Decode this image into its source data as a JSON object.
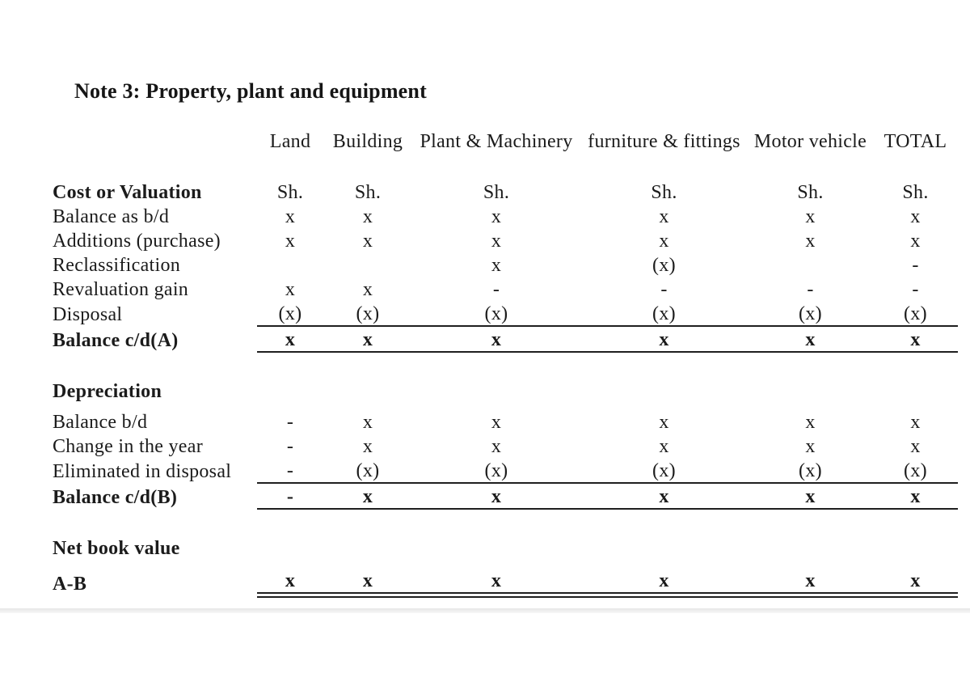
{
  "title": "Note 3: Property, plant and equipment",
  "table": {
    "columns": [
      "",
      "Land",
      "Building",
      "Plant & Machinery",
      "furniture & fittings",
      "Motor vehicle",
      "TOTAL"
    ],
    "rows": [
      {
        "label": "Cost or Valuation",
        "label_bold": true,
        "values": [
          "Sh.",
          "Sh.",
          "Sh.",
          "Sh.",
          "Sh.",
          "Sh."
        ]
      },
      {
        "label": "Balance as b/d",
        "values": [
          "x",
          "x",
          "x",
          "x",
          "x",
          "x"
        ]
      },
      {
        "label": "Additions (purchase)",
        "values": [
          "x",
          "x",
          "x",
          "x",
          "x",
          "x"
        ]
      },
      {
        "label": "Reclassification",
        "values": [
          "",
          "",
          "x",
          "(x)",
          "",
          "-"
        ]
      },
      {
        "label": "Revaluation gain",
        "values": [
          "x",
          "x",
          "-",
          "-",
          "-",
          "-"
        ]
      },
      {
        "label": "Disposal",
        "values": [
          "(x)",
          "(x)",
          "(x)",
          "(x)",
          "(x)",
          "(x)"
        ],
        "rule_below": true
      },
      {
        "label": "Balance c/d(A)",
        "label_bold": true,
        "values_bold": true,
        "values": [
          "x",
          "x",
          "x",
          "x",
          "x",
          "x"
        ],
        "rule_below": true
      },
      {
        "spacer": "lg"
      },
      {
        "label": "Depreciation",
        "label_bold": true,
        "values": [
          "",
          "",
          "",
          "",
          "",
          ""
        ]
      },
      {
        "spacer": "sm"
      },
      {
        "label": "Balance b/d",
        "values": [
          "-",
          "x",
          "x",
          "x",
          "x",
          "x"
        ]
      },
      {
        "label": "Change in the year",
        "values": [
          "-",
          "x",
          "x",
          "x",
          "x",
          "x"
        ]
      },
      {
        "label": "Eliminated in disposal",
        "values": [
          "-",
          "(x)",
          "(x)",
          "(x)",
          "(x)",
          "(x)"
        ],
        "rule_below": true
      },
      {
        "label": "Balance c/d(B)",
        "label_bold": true,
        "values_bold": true,
        "values": [
          "-",
          "x",
          "x",
          "x",
          "x",
          "x"
        ],
        "rule_below": true
      },
      {
        "spacer": "lg"
      },
      {
        "label": "Net book value",
        "label_bold": true,
        "values": [
          "",
          "",
          "",
          "",
          "",
          ""
        ]
      },
      {
        "spacer": "xs"
      },
      {
        "label": "A-B",
        "label_bold": true,
        "values_bold": true,
        "values": [
          "x",
          "x",
          "x",
          "x",
          "x",
          "x"
        ],
        "double_rule_below": true
      }
    ]
  }
}
